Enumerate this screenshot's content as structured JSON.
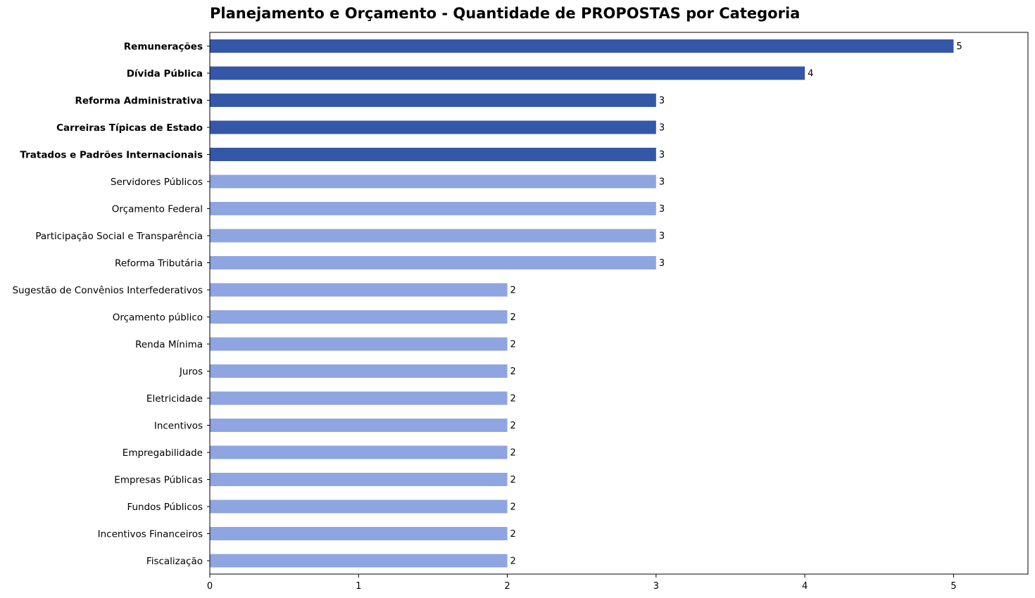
{
  "chart_data": {
    "type": "bar",
    "orientation": "horizontal",
    "title": "Planejamento e Orçamento - Quantidade de PROPOSTAS por Categoria",
    "xlabel": "",
    "ylabel": "",
    "xlim": [
      0,
      5.5
    ],
    "x_ticks": [
      0,
      1,
      2,
      3,
      4,
      5
    ],
    "grid": false,
    "colors": {
      "highlight": "#3457a8",
      "normal": "#8fa5e1"
    },
    "categories": [
      "Remunerações",
      "Dívida Pública",
      "Reforma Administrativa",
      "Carreiras Típicas de Estado",
      "Tratados e Padrões Internacionais",
      "Servidores Públicos",
      "Orçamento Federal",
      "Participação Social e Transparência",
      "Reforma Tributária",
      "Sugestão de Convênios Interfederativos",
      "Orçamento público",
      "Renda Mínima",
      "Juros",
      "Eletricidade",
      "Incentivos",
      "Empregabilidade",
      "Empresas Públicas",
      "Fundos Públicos",
      "Incentivos Financeiros",
      "Fiscalização"
    ],
    "values": [
      5,
      4,
      3,
      3,
      3,
      3,
      3,
      3,
      3,
      2,
      2,
      2,
      2,
      2,
      2,
      2,
      2,
      2,
      2,
      2
    ],
    "highlighted": [
      true,
      true,
      true,
      true,
      true,
      false,
      false,
      false,
      false,
      false,
      false,
      false,
      false,
      false,
      false,
      false,
      false,
      false,
      false,
      false
    ]
  }
}
